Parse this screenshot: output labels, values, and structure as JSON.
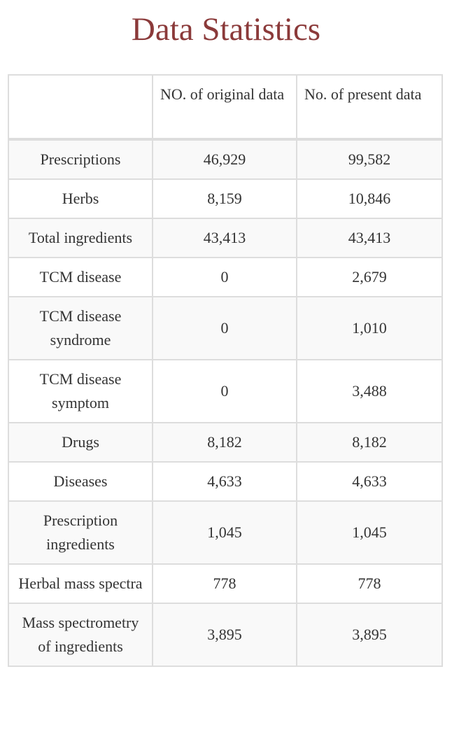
{
  "page": {
    "title": "Data Statistics"
  },
  "table": {
    "columns": [
      "",
      "NO. of original data",
      "No. of present data"
    ],
    "rows": [
      {
        "label": "Prescriptions",
        "original": "46,929",
        "present": "99,582"
      },
      {
        "label": "Herbs",
        "original": "8,159",
        "present": "10,846"
      },
      {
        "label": "Total ingredients",
        "original": "43,413",
        "present": "43,413"
      },
      {
        "label": "TCM disease",
        "original": "0",
        "present": "2,679"
      },
      {
        "label": "TCM disease syndrome",
        "original": "0",
        "present": "1,010"
      },
      {
        "label": "TCM disease symptom",
        "original": "0",
        "present": "3,488"
      },
      {
        "label": "Drugs",
        "original": "8,182",
        "present": "8,182"
      },
      {
        "label": "Diseases",
        "original": "4,633",
        "present": "4,633"
      },
      {
        "label": "Prescription ingredients",
        "original": "1,045",
        "present": "1,045"
      },
      {
        "label": "Herbal mass spectra",
        "original": "778",
        "present": "778"
      },
      {
        "label": "Mass spectrometry of ingredients",
        "original": "3,895",
        "present": "3,895"
      }
    ]
  },
  "colors": {
    "title": "#8b3a3a",
    "text": "#333333",
    "border": "#dddddd",
    "row_stripe": "#f9f9f9"
  }
}
